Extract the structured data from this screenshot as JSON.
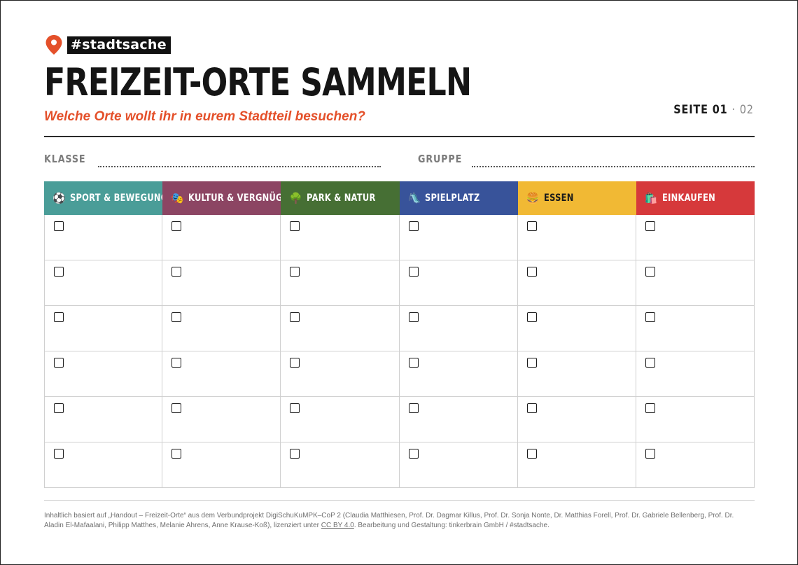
{
  "brand": {
    "tag": "#stadtsache",
    "pin_color": "#e4502a"
  },
  "header": {
    "title": "FREIZEIT-ORTE SAMMELN",
    "subtitle": "Welche Orte wollt ihr in eurem Stadtteil besuchen?",
    "page_label": "SEITE 01",
    "page_sep": "·",
    "page_total": "02"
  },
  "fields": {
    "klasse_label": "KLASSE",
    "gruppe_label": "GRUPPE"
  },
  "categories": [
    {
      "label": "SPORT & BEWEGUNG",
      "emoji": "⚽",
      "icon": "soccer-ball-icon",
      "color": "#4a9d98"
    },
    {
      "label": "KULTUR & VERGNÜGEN",
      "emoji": "🎭",
      "icon": "theater-masks-icon",
      "color": "#8c4563"
    },
    {
      "label": "PARK & NATUR",
      "emoji": "🌳",
      "icon": "tree-icon",
      "color": "#466f34"
    },
    {
      "label": "SPIELPLATZ",
      "emoji": "🛝",
      "icon": "slide-icon",
      "color": "#38539a"
    },
    {
      "label": "ESSEN",
      "emoji": "🍔",
      "icon": "burger-icon",
      "color": "#f1b934"
    },
    {
      "label": "EINKAUFEN",
      "emoji": "🛍️",
      "icon": "shopping-bags-icon",
      "color": "#d6393b"
    }
  ],
  "rows": 6,
  "footer": {
    "credit_before": "Inhaltlich basiert auf „Handout – Freizeit-Orte“ aus dem Verbundprojekt DigiSchuKuMPK–CoP 2 (Claudia Matthiesen, Prof. Dr. Dagmar Killus, Prof. Dr. Sonja Nonte, Dr. Matthias Forell, Prof. Dr. Gabriele Bellenberg, Prof. Dr. Aladin El-Mafaalani, Philipp Matthes, Melanie Ahrens, Anne Krause-Koß), lizenziert unter ",
    "license": "CC BY 4.0",
    "credit_after": ". Bearbeitung und Gestaltung: tinkerbrain GmbH / #stadtsache."
  }
}
